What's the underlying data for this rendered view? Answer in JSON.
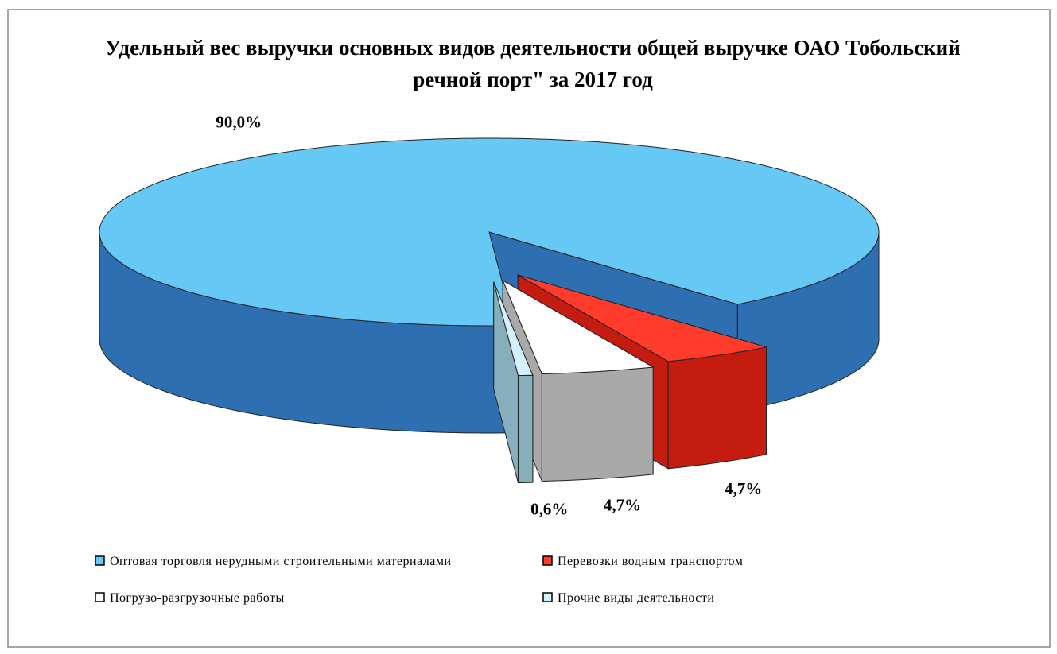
{
  "chart_data": {
    "type": "pie3d",
    "title": "Удельный вес выручки основных видов деятельности общей выручке ОАО Тобольский речной порт\" за 2017 год",
    "categories": [
      "Оптовая торговля нерудными строительными материалами",
      "Перевозки водным транспортом",
      "Погрузо-разгрузочные работы",
      "Прочие виды деятельности"
    ],
    "values": [
      90,
      4.7,
      4.7,
      0.6
    ],
    "value_labels": [
      "90,0%",
      "4,7%",
      "4,7%",
      "0,6%"
    ],
    "colors": [
      "#66c8f4",
      "#ff3b2b",
      "#ffffff",
      "#d4f1fb"
    ],
    "legend": "bottom"
  }
}
